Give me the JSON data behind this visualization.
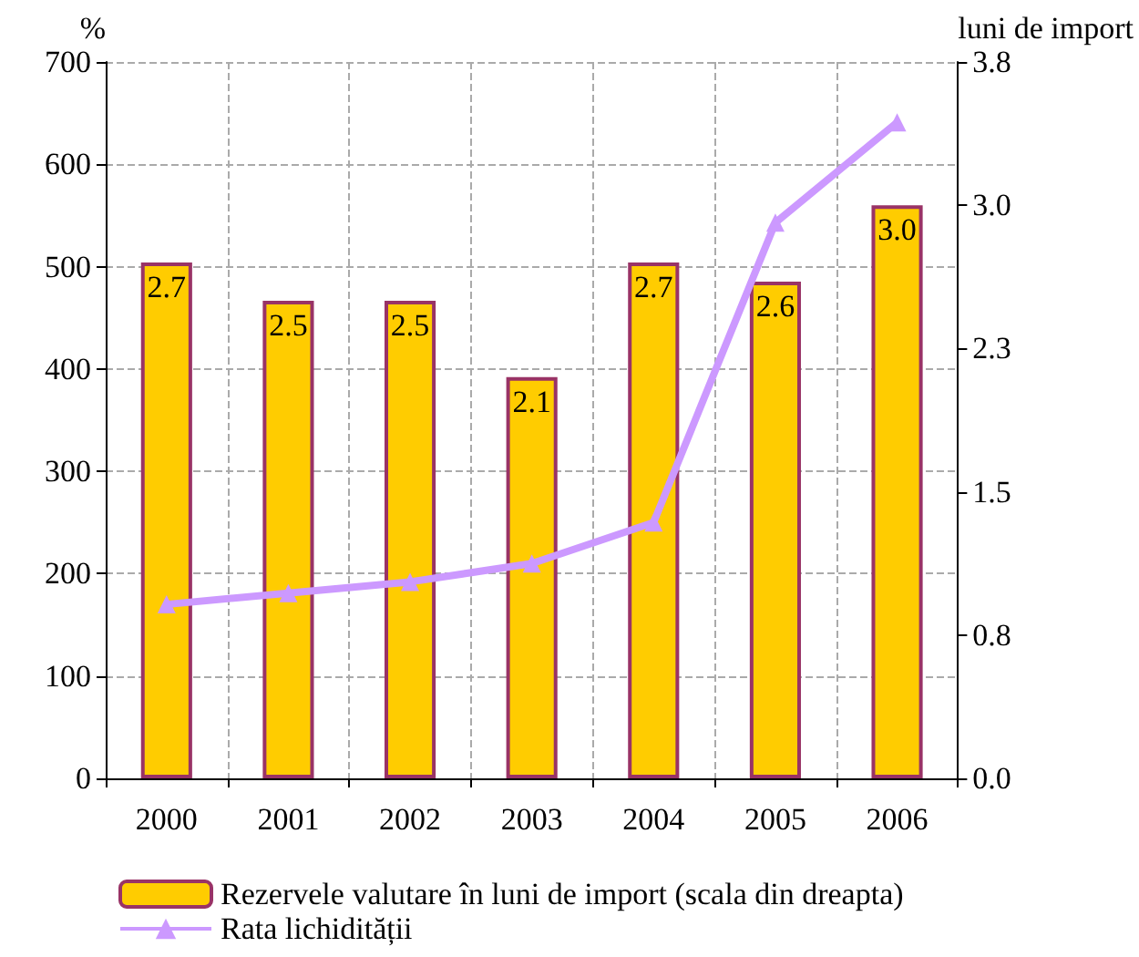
{
  "chart_data": {
    "type": "bar",
    "ylabel": "%",
    "y2label": "luni de import",
    "categories": [
      "2000",
      "2001",
      "2002",
      "2003",
      "2004",
      "2005",
      "2006"
    ],
    "series": [
      {
        "name": "Rezervele valutare în luni de import (scala din dreapta)",
        "axis": "y2",
        "color": "#ffcc00",
        "values": [
          2.7,
          2.5,
          2.5,
          2.1,
          2.7,
          2.6,
          3.0
        ],
        "value_labels": [
          "2.7",
          "2.5",
          "2.5",
          "2.1",
          "2.7",
          "2.6",
          "3.0"
        ]
      },
      {
        "name": "Rata lichidității",
        "type": "line",
        "color": "#cc99ff",
        "marker": "triangle",
        "values": [
          170,
          181,
          192,
          210,
          250,
          543,
          641
        ]
      }
    ],
    "ylim": [
      0,
      700
    ],
    "yticks": [
      0,
      100,
      200,
      300,
      400,
      500,
      600,
      700
    ],
    "y2lim": [
      0,
      3.75
    ],
    "y2ticks": [
      {
        "value": 0,
        "label": "0.0"
      },
      {
        "value": 0.75,
        "label": "0.8"
      },
      {
        "value": 1.5,
        "label": "1.5"
      },
      {
        "value": 2.25,
        "label": "2.3"
      },
      {
        "value": 3.0,
        "label": "3.0"
      },
      {
        "value": 3.75,
        "label": "3.8"
      }
    ],
    "grid": true,
    "legend": "bottom"
  }
}
